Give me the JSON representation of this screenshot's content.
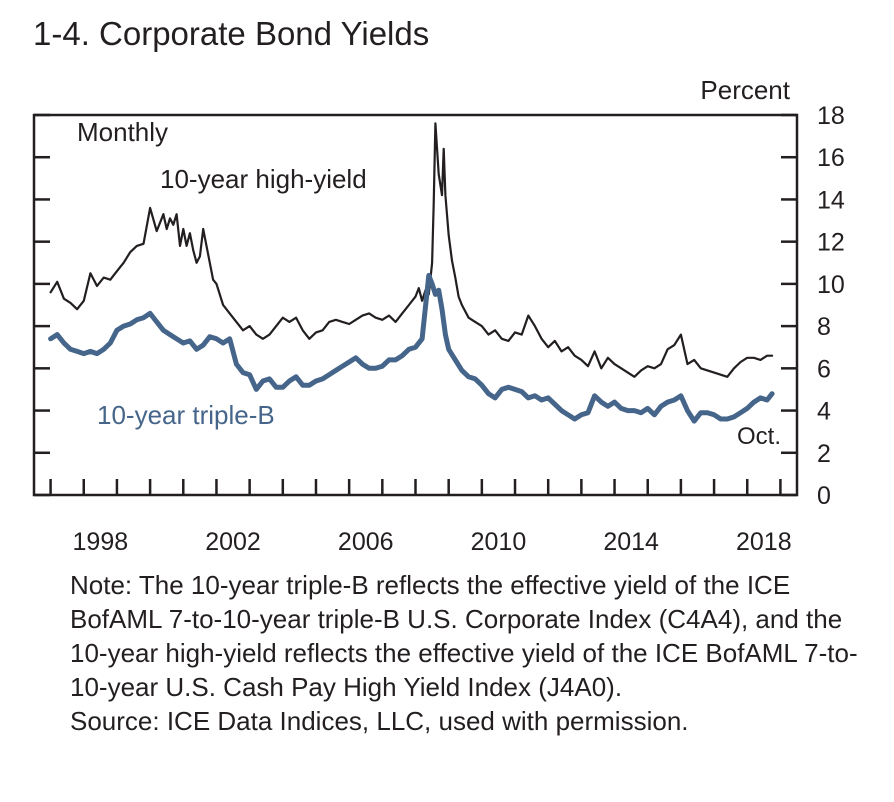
{
  "title": "1-4. Corporate Bond Yields",
  "chart_data": {
    "type": "line",
    "frequency_label": "Monthly",
    "unit_label": "Percent",
    "end_label": "Oct.",
    "ylim": [
      0,
      18
    ],
    "y_ticks": [
      0,
      2,
      4,
      6,
      8,
      10,
      12,
      14,
      16,
      18
    ],
    "y_tick_labels": [
      "0",
      "2",
      "4",
      "6",
      "8",
      "10",
      "12",
      "14",
      "16",
      "18"
    ],
    "xlim": [
      1996.5,
      2019.5
    ],
    "x_tick_labels": [
      "1998",
      "2002",
      "2006",
      "2010",
      "2014",
      "2018"
    ],
    "x_tick_years": [
      1998,
      2002,
      2006,
      2010,
      2014,
      2018
    ],
    "grid": false,
    "colors": {
      "hy": "#231f20",
      "bbb": "#46658a"
    },
    "series": [
      {
        "name": "10-year high-yield",
        "color": "#231f20",
        "x": [
          1997.0,
          1997.2,
          1997.4,
          1997.6,
          1997.8,
          1998.0,
          1998.2,
          1998.4,
          1998.6,
          1998.8,
          1999.0,
          1999.2,
          1999.4,
          1999.6,
          1999.8,
          2000.0,
          2000.2,
          2000.4,
          2000.5,
          2000.6,
          2000.7,
          2000.8,
          2000.9,
          2001.0,
          2001.1,
          2001.2,
          2001.3,
          2001.4,
          2001.5,
          2001.6,
          2001.7,
          2001.8,
          2001.9,
          2002.0,
          2002.2,
          2002.4,
          2002.6,
          2002.8,
          2003.0,
          2003.2,
          2003.4,
          2003.6,
          2003.8,
          2004.0,
          2004.2,
          2004.4,
          2004.6,
          2004.8,
          2005.0,
          2005.2,
          2005.4,
          2005.6,
          2005.8,
          2006.0,
          2006.2,
          2006.4,
          2006.6,
          2006.8,
          2007.0,
          2007.2,
          2007.4,
          2007.6,
          2007.8,
          2008.0,
          2008.1,
          2008.2,
          2008.3,
          2008.4,
          2008.5,
          2008.55,
          2008.6,
          2008.7,
          2008.8,
          2008.85,
          2008.9,
          2009.0,
          2009.1,
          2009.2,
          2009.3,
          2009.4,
          2009.6,
          2009.8,
          2010.0,
          2010.2,
          2010.4,
          2010.6,
          2010.8,
          2011.0,
          2011.2,
          2011.4,
          2011.6,
          2011.8,
          2012.0,
          2012.2,
          2012.4,
          2012.6,
          2012.8,
          2013.0,
          2013.2,
          2013.4,
          2013.6,
          2013.8,
          2014.0,
          2014.2,
          2014.4,
          2014.6,
          2014.8,
          2015.0,
          2015.2,
          2015.4,
          2015.6,
          2015.8,
          2016.0,
          2016.2,
          2016.4,
          2016.6,
          2016.8,
          2017.0,
          2017.2,
          2017.4,
          2017.6,
          2017.8,
          2018.0,
          2018.2,
          2018.4,
          2018.6,
          2018.75
        ],
        "values": [
          9.6,
          10.1,
          9.3,
          9.1,
          8.8,
          9.2,
          10.5,
          9.9,
          10.3,
          10.2,
          10.6,
          11.0,
          11.5,
          11.8,
          11.9,
          13.6,
          12.5,
          13.3,
          12.6,
          13.1,
          12.8,
          13.3,
          11.8,
          12.6,
          11.8,
          12.4,
          11.6,
          11.0,
          11.3,
          12.6,
          11.8,
          11.0,
          10.2,
          10.0,
          9.0,
          8.6,
          8.2,
          7.8,
          8.0,
          7.6,
          7.4,
          7.6,
          8.0,
          8.4,
          8.2,
          8.4,
          7.8,
          7.4,
          7.7,
          7.8,
          8.2,
          8.3,
          8.2,
          8.1,
          8.3,
          8.5,
          8.6,
          8.4,
          8.3,
          8.5,
          8.2,
          8.6,
          9.0,
          9.4,
          9.8,
          9.2,
          9.7,
          9.5,
          11.0,
          13.8,
          17.6,
          15.2,
          14.2,
          16.4,
          14.2,
          12.3,
          11.1,
          10.3,
          9.4,
          9.0,
          8.4,
          8.2,
          8.0,
          7.6,
          7.8,
          7.4,
          7.3,
          7.7,
          7.6,
          8.5,
          8.0,
          7.4,
          7.0,
          7.3,
          6.8,
          7.0,
          6.6,
          6.4,
          6.1,
          6.8,
          6.0,
          6.5,
          6.2,
          6.0,
          5.8,
          5.6,
          5.9,
          6.1,
          6.0,
          6.2,
          6.9,
          7.1,
          7.6,
          6.2,
          6.4,
          6.0,
          5.9,
          5.8,
          5.7,
          5.6,
          6.0,
          6.3,
          6.5,
          6.5,
          6.4,
          6.6,
          6.6
        ]
      },
      {
        "name": "10-year triple-B",
        "color": "#46658a",
        "x": [
          1997.0,
          1997.2,
          1997.4,
          1997.6,
          1997.8,
          1998.0,
          1998.2,
          1998.4,
          1998.6,
          1998.8,
          1999.0,
          1999.2,
          1999.4,
          1999.6,
          1999.8,
          2000.0,
          2000.2,
          2000.4,
          2000.6,
          2000.8,
          2001.0,
          2001.2,
          2001.4,
          2001.6,
          2001.8,
          2002.0,
          2002.2,
          2002.4,
          2002.6,
          2002.8,
          2003.0,
          2003.2,
          2003.4,
          2003.6,
          2003.8,
          2004.0,
          2004.2,
          2004.4,
          2004.6,
          2004.8,
          2005.0,
          2005.2,
          2005.4,
          2005.6,
          2005.8,
          2006.0,
          2006.2,
          2006.4,
          2006.6,
          2006.8,
          2007.0,
          2007.2,
          2007.4,
          2007.6,
          2007.8,
          2008.0,
          2008.2,
          2008.4,
          2008.5,
          2008.6,
          2008.7,
          2008.8,
          2008.9,
          2009.0,
          2009.2,
          2009.4,
          2009.6,
          2009.8,
          2010.0,
          2010.2,
          2010.4,
          2010.6,
          2010.8,
          2011.0,
          2011.2,
          2011.4,
          2011.6,
          2011.8,
          2012.0,
          2012.2,
          2012.4,
          2012.6,
          2012.8,
          2013.0,
          2013.2,
          2013.4,
          2013.6,
          2013.8,
          2014.0,
          2014.2,
          2014.4,
          2014.6,
          2014.8,
          2015.0,
          2015.2,
          2015.4,
          2015.6,
          2015.8,
          2016.0,
          2016.2,
          2016.4,
          2016.6,
          2016.8,
          2017.0,
          2017.2,
          2017.4,
          2017.6,
          2017.8,
          2018.0,
          2018.2,
          2018.4,
          2018.6,
          2018.75
        ],
        "values": [
          7.4,
          7.6,
          7.2,
          6.9,
          6.8,
          6.7,
          6.8,
          6.7,
          6.9,
          7.2,
          7.8,
          8.0,
          8.1,
          8.3,
          8.4,
          8.6,
          8.2,
          7.8,
          7.6,
          7.4,
          7.2,
          7.3,
          6.9,
          7.1,
          7.5,
          7.4,
          7.2,
          7.4,
          6.2,
          5.8,
          5.7,
          5.0,
          5.4,
          5.5,
          5.1,
          5.1,
          5.4,
          5.6,
          5.2,
          5.2,
          5.4,
          5.5,
          5.7,
          5.9,
          6.1,
          6.3,
          6.5,
          6.2,
          6.0,
          6.0,
          6.1,
          6.4,
          6.4,
          6.6,
          6.9,
          7.0,
          7.4,
          10.4,
          10.0,
          9.5,
          9.7,
          8.8,
          7.6,
          6.9,
          6.4,
          5.9,
          5.6,
          5.5,
          5.2,
          4.8,
          4.6,
          5.0,
          5.1,
          5.0,
          4.9,
          4.6,
          4.7,
          4.5,
          4.6,
          4.3,
          4.0,
          3.8,
          3.6,
          3.8,
          3.9,
          4.7,
          4.4,
          4.2,
          4.4,
          4.1,
          4.0,
          4.0,
          3.9,
          4.1,
          3.8,
          4.2,
          4.4,
          4.5,
          4.7,
          4.0,
          3.5,
          3.9,
          3.9,
          3.8,
          3.6,
          3.6,
          3.7,
          3.9,
          4.1,
          4.4,
          4.6,
          4.5,
          4.8
        ]
      }
    ]
  },
  "notes": {
    "note": "Note: The 10-year triple-B reflects the effective yield of the ICE BofAML 7-to-10-year triple-B U.S. Corporate Index (C4A4), and the 10-year high-yield reflects the effective yield of the ICE BofAML 7-to-10-year U.S. Cash Pay High Yield Index (J4A0).",
    "source": "Source: ICE Data Indices, LLC, used with permission."
  }
}
